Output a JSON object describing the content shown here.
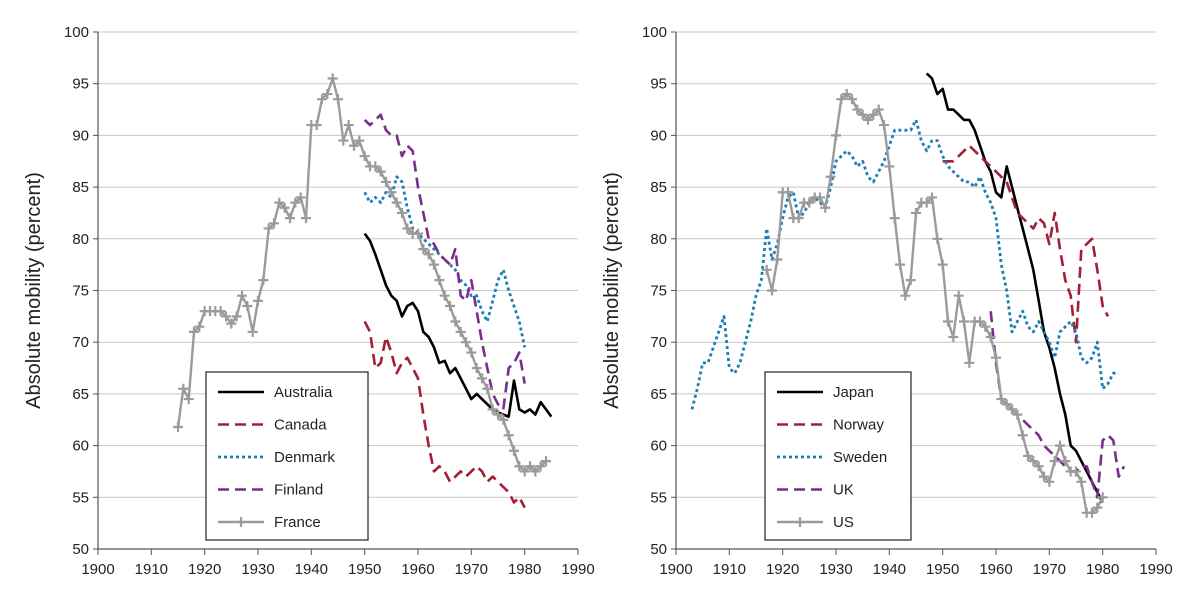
{
  "chart_data": [
    {
      "type": "line",
      "title": "",
      "xlabel": "",
      "ylabel": "Absolute mobility (percent)",
      "xlim": [
        1900,
        1990
      ],
      "ylim": [
        50,
        100
      ],
      "xticks": [
        1900,
        1910,
        1920,
        1930,
        1940,
        1950,
        1960,
        1970,
        1980,
        1990
      ],
      "yticks": [
        50,
        55,
        60,
        65,
        70,
        75,
        80,
        85,
        90,
        95,
        100
      ],
      "grid": "horizontal",
      "legend": "bottom-left",
      "series": [
        {
          "name": "Australia",
          "color": "#000000",
          "style": "solid",
          "x": [
            1950,
            1951,
            1952,
            1953,
            1954,
            1955,
            1956,
            1957,
            1958,
            1959,
            1960,
            1961,
            1962,
            1963,
            1964,
            1965,
            1966,
            1967,
            1968,
            1969,
            1970,
            1971,
            1972,
            1973,
            1974,
            1975,
            1976,
            1977,
            1978,
            1979,
            1980,
            1981,
            1982,
            1983,
            1984,
            1985
          ],
          "y": [
            80.5,
            79.8,
            78.5,
            77.0,
            75.5,
            74.5,
            74.0,
            72.5,
            73.5,
            73.8,
            73.0,
            71.0,
            70.5,
            69.5,
            68.0,
            68.2,
            67.0,
            67.5,
            66.5,
            65.5,
            64.5,
            65.0,
            64.5,
            64.0,
            63.5,
            63.2,
            63.0,
            62.8,
            66.3,
            63.5,
            63.2,
            63.5,
            63.0,
            64.2,
            63.5,
            62.8
          ]
        },
        {
          "name": "Canada",
          "color": "#a31f34",
          "style": "dashed",
          "x": [
            1950,
            1951,
            1952,
            1953,
            1954,
            1955,
            1956,
            1957,
            1958,
            1959,
            1960,
            1961,
            1962,
            1963,
            1964,
            1965,
            1966,
            1967,
            1968,
            1969,
            1970,
            1971,
            1972,
            1973,
            1974,
            1975,
            1976,
            1977,
            1978,
            1979,
            1980
          ],
          "y": [
            72.0,
            71.0,
            67.5,
            68.0,
            70.5,
            69.0,
            67.0,
            68.0,
            68.5,
            67.5,
            66.5,
            63.0,
            60.0,
            57.5,
            58.0,
            57.5,
            56.5,
            57.0,
            57.5,
            57.0,
            57.5,
            58.0,
            57.5,
            56.5,
            57.0,
            56.5,
            56.0,
            55.5,
            54.5,
            55.0,
            54.0
          ]
        },
        {
          "name": "Denmark",
          "color": "#1b7fb5",
          "style": "dotted",
          "x": [
            1950,
            1951,
            1952,
            1953,
            1954,
            1955,
            1956,
            1957,
            1958,
            1959,
            1960,
            1961,
            1962,
            1963,
            1964,
            1965,
            1966,
            1967,
            1968,
            1969,
            1970,
            1971,
            1972,
            1973,
            1974,
            1975,
            1976,
            1977,
            1978,
            1979,
            1980
          ],
          "y": [
            84.5,
            83.5,
            84.0,
            83.5,
            84.5,
            84.0,
            86.0,
            85.5,
            83.0,
            81.0,
            80.5,
            80.0,
            79.5,
            79.0,
            78.5,
            78.0,
            77.5,
            77.0,
            76.0,
            75.5,
            74.5,
            74.5,
            73.0,
            72.0,
            74.0,
            76.0,
            77.0,
            75.0,
            73.5,
            72.0,
            69.5
          ]
        },
        {
          "name": "Finland",
          "color": "#7b2d8e",
          "style": "dashed",
          "x": [
            1950,
            1951,
            1952,
            1953,
            1954,
            1955,
            1956,
            1957,
            1958,
            1959,
            1960,
            1961,
            1962,
            1963,
            1964,
            1965,
            1966,
            1967,
            1968,
            1969,
            1970,
            1971,
            1972,
            1973,
            1974,
            1975,
            1976,
            1977,
            1978,
            1979,
            1980
          ],
          "y": [
            91.5,
            91.0,
            91.5,
            92.0,
            90.5,
            90.0,
            90.0,
            88.0,
            89.0,
            88.5,
            85.0,
            82.5,
            80.0,
            79.5,
            78.5,
            78.0,
            77.5,
            79.0,
            74.5,
            74.0,
            76.0,
            73.0,
            70.0,
            67.5,
            65.0,
            64.0,
            63.5,
            67.5,
            68.0,
            69.0,
            66.0
          ]
        },
        {
          "name": "France",
          "color": "#9b9b9b",
          "style": "cross",
          "x": [
            1915,
            1916,
            1917,
            1918,
            1919,
            1920,
            1921,
            1922,
            1923,
            1924,
            1925,
            1926,
            1927,
            1928,
            1929,
            1930,
            1931,
            1932,
            1933,
            1934,
            1935,
            1936,
            1937,
            1938,
            1939,
            1940,
            1941,
            1942,
            1943,
            1944,
            1945,
            1946,
            1947,
            1948,
            1949,
            1950,
            1951,
            1952,
            1953,
            1954,
            1955,
            1956,
            1957,
            1958,
            1959,
            1960,
            1961,
            1962,
            1963,
            1964,
            1965,
            1966,
            1967,
            1968,
            1969,
            1970,
            1971,
            1972,
            1973,
            1974,
            1975,
            1976,
            1977,
            1978,
            1979,
            1980,
            1981,
            1982,
            1983,
            1984
          ],
          "y": [
            61.8,
            65.5,
            64.5,
            71.0,
            71.5,
            73.0,
            73.0,
            73.0,
            73.0,
            72.5,
            71.8,
            72.5,
            74.5,
            73.5,
            71.0,
            74.0,
            76.0,
            81.0,
            81.5,
            83.5,
            83.0,
            82.0,
            83.5,
            84.0,
            82.0,
            91.0,
            91.0,
            93.5,
            94.0,
            95.5,
            93.5,
            89.5,
            91.0,
            89.0,
            89.5,
            88.0,
            87.0,
            87.0,
            86.5,
            85.5,
            84.5,
            83.5,
            82.5,
            81.0,
            80.5,
            80.5,
            79.0,
            78.5,
            77.5,
            76.0,
            74.5,
            73.5,
            72.0,
            71.0,
            70.0,
            69.0,
            67.5,
            66.5,
            65.5,
            63.5,
            63.0,
            62.5,
            61.0,
            59.5,
            58.0,
            57.5,
            58.0,
            57.5,
            58.0,
            58.5
          ]
        }
      ]
    },
    {
      "type": "line",
      "title": "",
      "xlabel": "",
      "ylabel": "Absolute mobility (percent)",
      "xlim": [
        1900,
        1990
      ],
      "ylim": [
        50,
        100
      ],
      "xticks": [
        1900,
        1910,
        1920,
        1930,
        1940,
        1950,
        1960,
        1970,
        1980,
        1990
      ],
      "yticks": [
        50,
        55,
        60,
        65,
        70,
        75,
        80,
        85,
        90,
        95,
        100
      ],
      "grid": "horizontal",
      "legend": "bottom-left",
      "series": [
        {
          "name": "Japan",
          "color": "#000000",
          "style": "solid",
          "x": [
            1947,
            1948,
            1949,
            1950,
            1951,
            1952,
            1953,
            1954,
            1955,
            1956,
            1957,
            1958,
            1959,
            1960,
            1961,
            1962,
            1963,
            1964,
            1965,
            1966,
            1967,
            1968,
            1969,
            1970,
            1971,
            1972,
            1973,
            1974,
            1975,
            1976,
            1977,
            1978,
            1979,
            1980
          ],
          "y": [
            96.0,
            95.5,
            94.0,
            94.5,
            92.5,
            92.5,
            92.0,
            91.5,
            91.5,
            90.5,
            89.0,
            87.5,
            86.5,
            84.5,
            84.0,
            87.0,
            85.0,
            83.0,
            81.0,
            79.0,
            77.0,
            74.0,
            71.0,
            69.5,
            67.5,
            65.0,
            63.0,
            60.0,
            59.5,
            58.5,
            57.5,
            56.5,
            55.5,
            54.5
          ]
        },
        {
          "name": "Norway",
          "color": "#a31f34",
          "style": "dashed",
          "x": [
            1950,
            1951,
            1952,
            1953,
            1954,
            1955,
            1956,
            1957,
            1958,
            1959,
            1960,
            1961,
            1962,
            1963,
            1964,
            1965,
            1966,
            1967,
            1968,
            1969,
            1970,
            1971,
            1972,
            1973,
            1974,
            1975,
            1976,
            1977,
            1978,
            1979,
            1980,
            1981
          ],
          "y": [
            87.5,
            87.5,
            87.5,
            88.0,
            88.5,
            89.0,
            88.5,
            88.0,
            87.5,
            87.0,
            86.5,
            86.0,
            85.5,
            84.0,
            82.5,
            82.0,
            81.5,
            81.0,
            82.0,
            81.5,
            79.5,
            82.5,
            79.0,
            76.0,
            74.5,
            70.0,
            79.0,
            79.5,
            80.0,
            77.0,
            73.5,
            72.5
          ]
        },
        {
          "name": "Sweden",
          "color": "#1b7fb5",
          "style": "dotted",
          "x": [
            1903,
            1904,
            1905,
            1906,
            1907,
            1908,
            1909,
            1910,
            1911,
            1912,
            1913,
            1914,
            1915,
            1916,
            1917,
            1918,
            1919,
            1920,
            1921,
            1922,
            1923,
            1924,
            1925,
            1926,
            1927,
            1928,
            1929,
            1930,
            1931,
            1932,
            1933,
            1934,
            1935,
            1936,
            1937,
            1938,
            1939,
            1940,
            1941,
            1942,
            1943,
            1944,
            1945,
            1946,
            1947,
            1948,
            1949,
            1950,
            1951,
            1952,
            1953,
            1954,
            1955,
            1956,
            1957,
            1958,
            1959,
            1960,
            1961,
            1962,
            1963,
            1964,
            1965,
            1966,
            1967,
            1968,
            1969,
            1970,
            1971,
            1972,
            1973,
            1974,
            1975,
            1976,
            1977,
            1978,
            1979,
            1980,
            1981,
            1982,
            1983
          ],
          "y": [
            63.5,
            65.5,
            68.0,
            68.0,
            69.5,
            71.0,
            72.5,
            67.5,
            67.0,
            68.0,
            70.0,
            72.0,
            74.5,
            76.0,
            81.0,
            78.0,
            79.5,
            82.0,
            84.0,
            84.5,
            82.0,
            82.5,
            83.5,
            84.0,
            83.5,
            83.0,
            85.0,
            87.5,
            88.0,
            88.5,
            88.0,
            87.0,
            87.5,
            86.0,
            85.5,
            86.5,
            87.5,
            89.0,
            90.5,
            90.5,
            90.5,
            90.5,
            91.5,
            89.5,
            88.5,
            89.5,
            89.5,
            88.0,
            87.0,
            86.5,
            86.0,
            85.5,
            85.5,
            85.0,
            86.0,
            84.5,
            83.5,
            82.0,
            77.5,
            75.0,
            71.0,
            72.0,
            73.0,
            71.5,
            71.0,
            72.0,
            71.0,
            70.0,
            68.5,
            71.0,
            71.5,
            72.0,
            71.0,
            68.5,
            68.0,
            68.5,
            70.0,
            65.5,
            66.0,
            67.0,
            67.0
          ]
        },
        {
          "name": "UK",
          "color": "#7b2d8e",
          "style": "dashed",
          "x": [
            1959,
            1960,
            1961,
            1962,
            1963,
            1964,
            1965,
            1966,
            1967,
            1968,
            1969,
            1970,
            1971,
            1972,
            1973,
            1974,
            1975,
            1976,
            1977,
            1978,
            1979,
            1980,
            1981,
            1982,
            1983,
            1984
          ],
          "y": [
            73.0,
            68.0,
            64.5,
            64.0,
            63.5,
            63.0,
            62.5,
            62.0,
            61.5,
            61.0,
            60.0,
            59.5,
            59.0,
            58.5,
            58.0,
            57.5,
            57.5,
            58.0,
            58.0,
            56.5,
            55.0,
            60.5,
            61.0,
            60.5,
            57.0,
            58.0
          ]
        },
        {
          "name": "US",
          "color": "#9b9b9b",
          "style": "cross",
          "x": [
            1917,
            1918,
            1919,
            1920,
            1921,
            1922,
            1923,
            1924,
            1925,
            1926,
            1927,
            1928,
            1929,
            1930,
            1931,
            1932,
            1933,
            1934,
            1935,
            1936,
            1937,
            1938,
            1939,
            1940,
            1941,
            1942,
            1943,
            1944,
            1945,
            1946,
            1947,
            1948,
            1949,
            1950,
            1951,
            1952,
            1953,
            1954,
            1955,
            1956,
            1957,
            1958,
            1959,
            1960,
            1961,
            1962,
            1963,
            1964,
            1965,
            1966,
            1967,
            1968,
            1969,
            1970,
            1971,
            1972,
            1973,
            1974,
            1975,
            1976,
            1977,
            1978,
            1979,
            1980
          ],
          "y": [
            77.0,
            75.0,
            78.0,
            84.5,
            84.5,
            82.0,
            82.0,
            83.5,
            83.5,
            84.0,
            84.0,
            83.0,
            86.0,
            90.0,
            93.5,
            94.0,
            93.5,
            92.5,
            92.0,
            91.5,
            92.0,
            92.5,
            91.0,
            87.0,
            82.0,
            77.5,
            74.5,
            76.0,
            82.5,
            83.5,
            83.5,
            84.0,
            80.0,
            77.5,
            72.0,
            70.5,
            74.5,
            72.0,
            68.0,
            72.0,
            72.0,
            71.5,
            70.5,
            68.5,
            64.5,
            64.0,
            63.5,
            63.0,
            61.0,
            59.0,
            58.5,
            58.0,
            57.0,
            56.5,
            58.5,
            60.0,
            58.5,
            57.5,
            57.5,
            56.5,
            53.5,
            53.5,
            54.0,
            55.0
          ]
        }
      ]
    }
  ]
}
